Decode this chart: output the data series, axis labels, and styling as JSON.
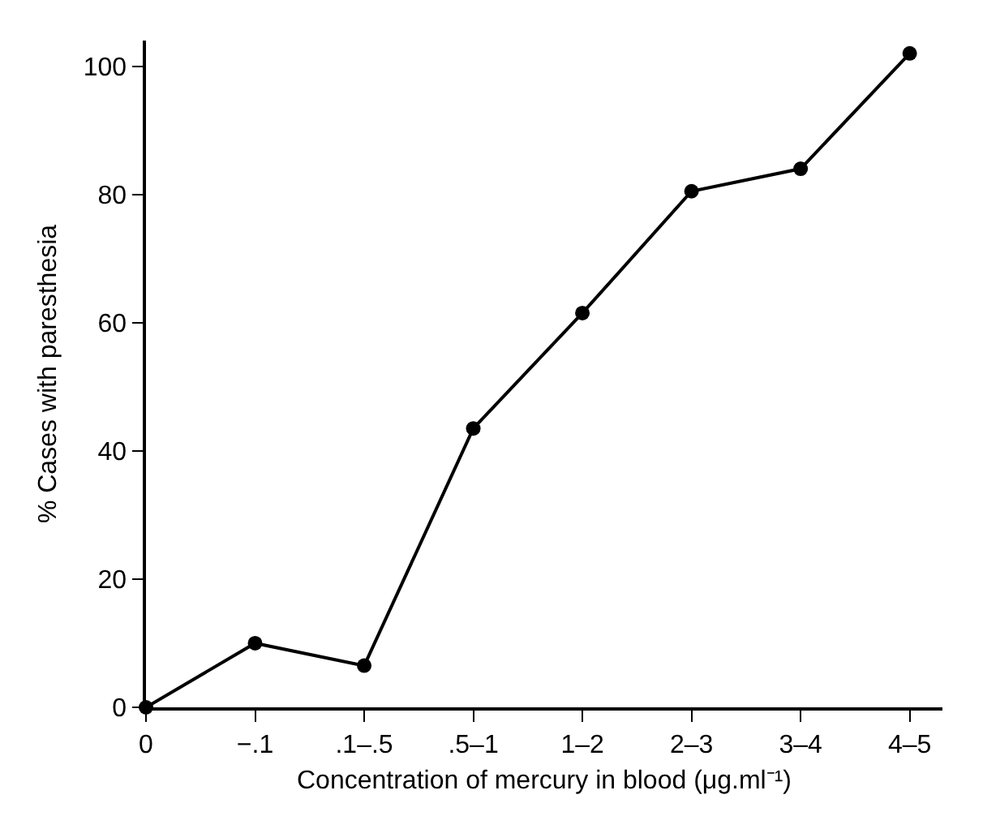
{
  "chart_data": {
    "type": "line",
    "xlabel": "Concentration of mercury in blood (μg.ml⁻¹)",
    "ylabel": "% Cases with paresthesia",
    "categories": [
      "0",
      "−.1",
      ".1–.5",
      ".5–1",
      "1–2",
      "2–3",
      "3–4",
      "4–5"
    ],
    "series": [
      {
        "color": "#000000",
        "values": [
          0,
          10,
          6.5,
          43.5,
          61.5,
          80.5,
          84,
          102
        ]
      }
    ],
    "ylim": [
      0,
      104
    ],
    "yticks": [
      0,
      20,
      40,
      60,
      80,
      100
    ],
    "grid": false,
    "legend": false,
    "marker": "circle",
    "line_style": "solid"
  }
}
